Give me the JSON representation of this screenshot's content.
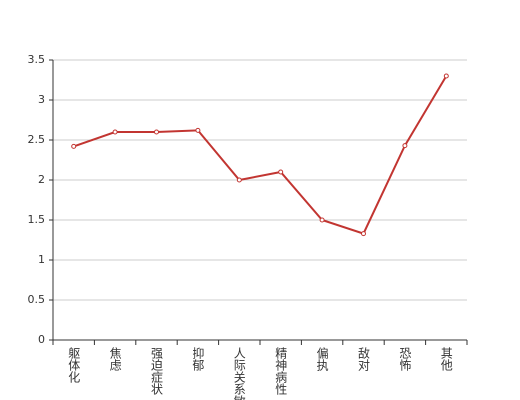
{
  "chart_data": {
    "type": "line",
    "categories": [
      "躯体化",
      "焦虑",
      "强迫症状",
      "抑郁",
      "人际关系敏",
      "精神病性",
      "偏执",
      "敌对",
      "恐怖",
      "其他"
    ],
    "series": [
      {
        "color": "#c23531",
        "values": [
          2.42,
          2.6,
          2.6,
          2.62,
          2.0,
          2.1,
          1.5,
          1.33,
          2.43,
          3.3
        ]
      }
    ],
    "ylim": [
      0,
      3.5
    ],
    "yticks": [
      0,
      0.5,
      1,
      1.5,
      2,
      2.5,
      3,
      3.5
    ],
    "grid": true
  }
}
